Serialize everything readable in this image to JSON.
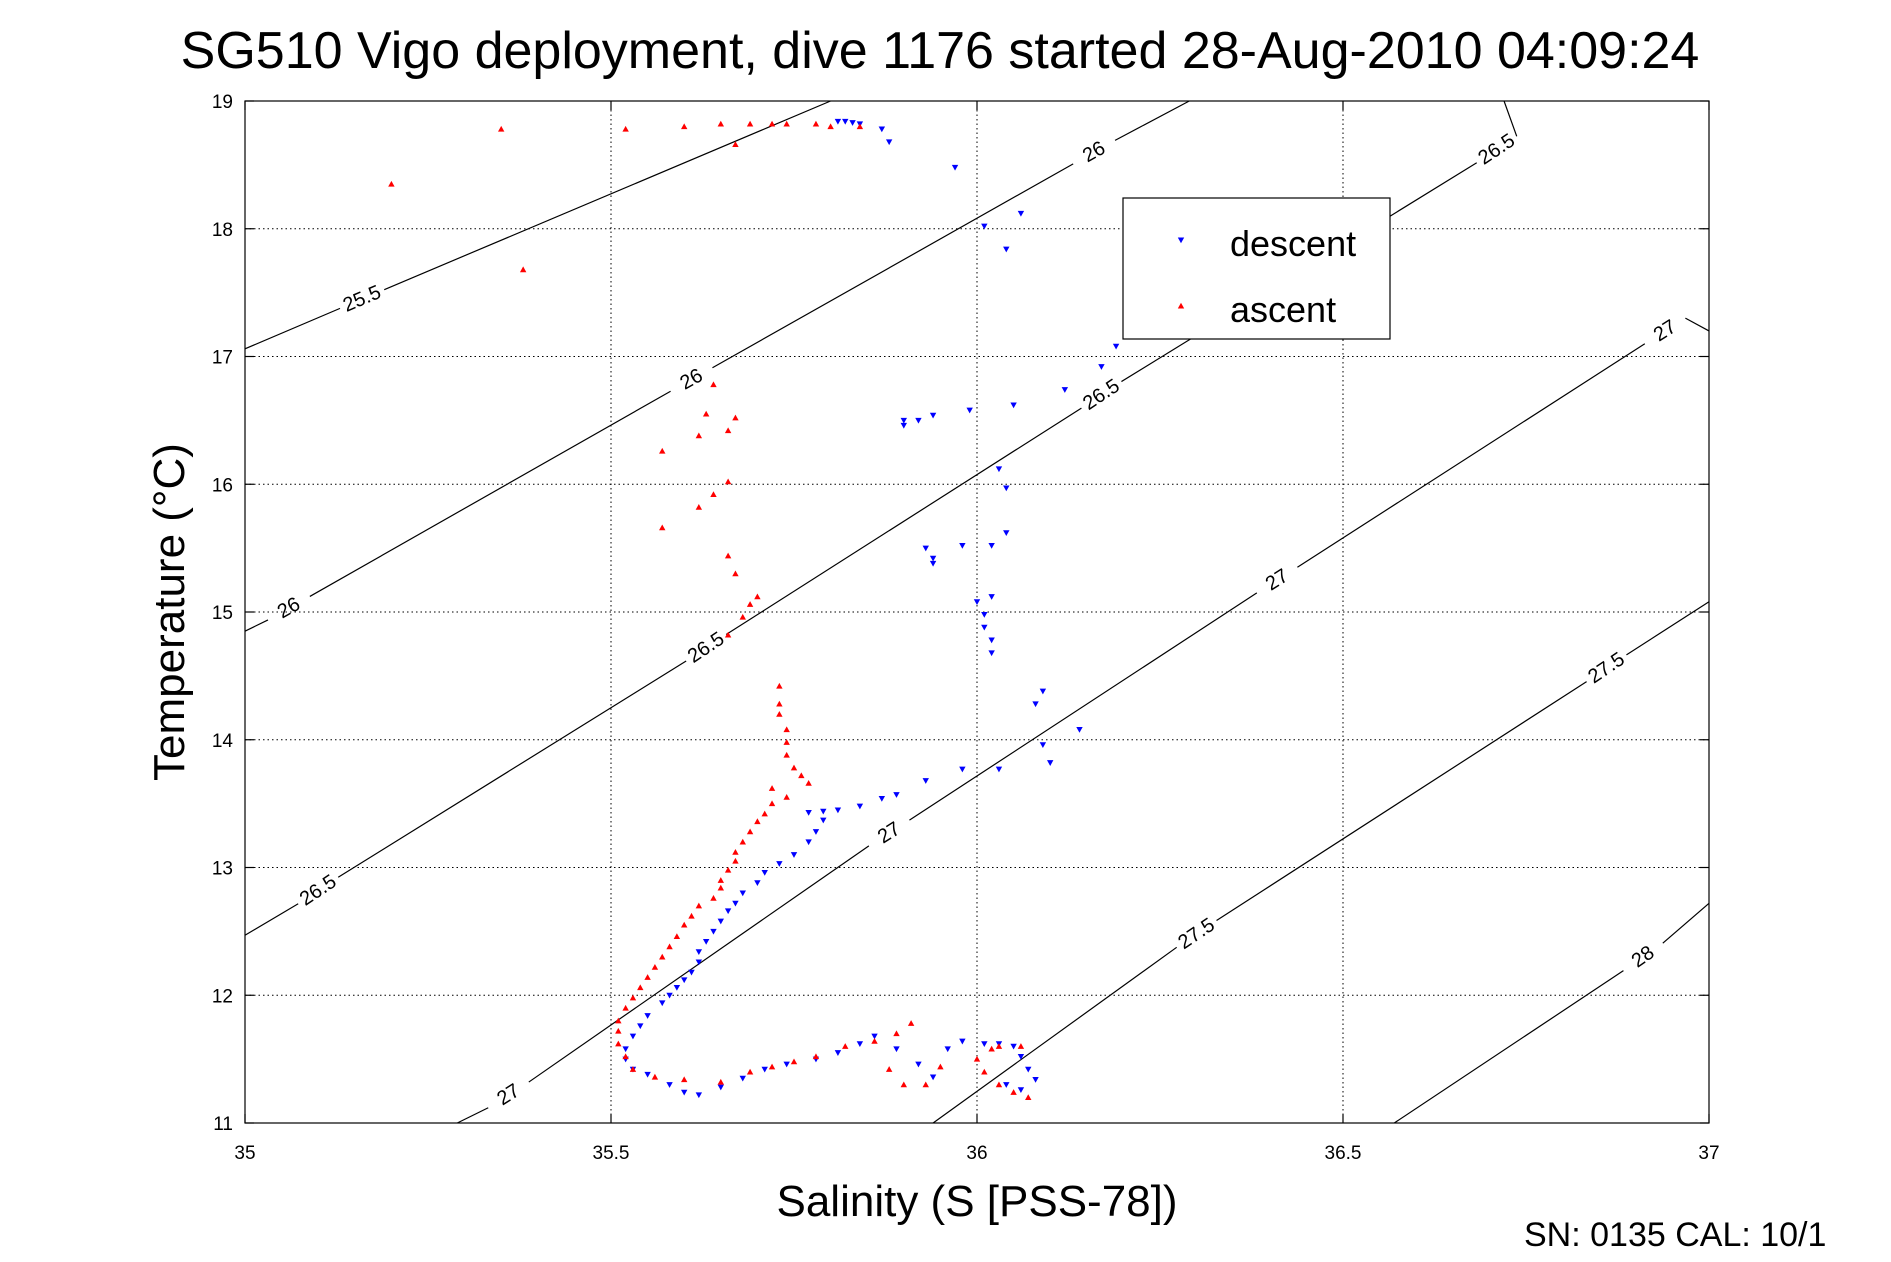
{
  "chart_data": {
    "type": "scatter",
    "title": "SG510 Vigo deployment, dive 1176 started 28-Aug-2010 04:09:24",
    "xlabel": "Salinity (S [PSS-78])",
    "ylabel": "Temperature (°C)",
    "xlim": [
      35,
      37
    ],
    "ylim": [
      11,
      19
    ],
    "x_ticks": [
      "35",
      "35.5",
      "36",
      "36.5",
      "37"
    ],
    "y_ticks": [
      "11",
      "12",
      "13",
      "14",
      "15",
      "16",
      "17",
      "18",
      "19"
    ],
    "grid": true,
    "legend_position": "top-right",
    "footer": "SN: 0135  CAL: 10/1",
    "colors": {
      "descent": "#0000ff",
      "ascent": "#ff0000",
      "contour": "#000000"
    },
    "contours": [
      {
        "level": "25.5",
        "points": [
          [
            35.0,
            17.06
          ],
          [
            35.8,
            19.0
          ]
        ],
        "labels": [
          [
            35.16,
            17.45
          ]
        ]
      },
      {
        "level": "26",
        "points": [
          [
            35.0,
            14.85
          ],
          [
            36.29,
            19.0
          ]
        ],
        "labels": [
          [
            35.06,
            15.03
          ],
          [
            35.61,
            16.82
          ],
          [
            36.16,
            18.6
          ]
        ]
      },
      {
        "level": "26.5",
        "points": [
          [
            35.0,
            12.47
          ],
          [
            36.72,
            19.0
          ]
        ],
        "labels": [
          [
            35.1,
            12.82
          ],
          [
            35.63,
            14.72
          ],
          [
            36.17,
            16.7
          ],
          [
            36.71,
            18.62
          ]
        ]
      },
      {
        "level": "27",
        "points": [
          [
            35.29,
            11.0
          ],
          [
            37.0,
            17.2
          ]
        ],
        "labels": [
          [
            35.36,
            11.22
          ],
          [
            35.88,
            13.27
          ],
          [
            36.41,
            15.25
          ],
          [
            36.94,
            17.2
          ]
        ]
      },
      {
        "level": "27.5",
        "points": [
          [
            35.94,
            11.0
          ],
          [
            37.0,
            15.08
          ]
        ],
        "labels": [
          [
            36.3,
            12.48
          ],
          [
            36.86,
            14.56
          ]
        ]
      },
      {
        "level": "28",
        "points": [
          [
            36.57,
            11.0
          ],
          [
            37.0,
            12.72
          ]
        ],
        "labels": [
          [
            36.91,
            12.3
          ]
        ]
      }
    ],
    "series": [
      {
        "name": "descent",
        "marker": "triangle-down",
        "points": [
          [
            35.81,
            18.84
          ],
          [
            35.82,
            18.84
          ],
          [
            35.83,
            18.83
          ],
          [
            35.84,
            18.82
          ],
          [
            35.87,
            18.78
          ],
          [
            35.88,
            18.68
          ],
          [
            35.97,
            18.48
          ],
          [
            36.01,
            18.02
          ],
          [
            36.06,
            18.12
          ],
          [
            36.04,
            17.84
          ],
          [
            36.19,
            17.08
          ],
          [
            36.17,
            16.92
          ],
          [
            36.12,
            16.74
          ],
          [
            36.05,
            16.62
          ],
          [
            35.99,
            16.58
          ],
          [
            35.94,
            16.54
          ],
          [
            35.92,
            16.5
          ],
          [
            35.9,
            16.5
          ],
          [
            35.9,
            16.46
          ],
          [
            36.03,
            16.12
          ],
          [
            36.04,
            15.97
          ],
          [
            36.04,
            15.62
          ],
          [
            36.02,
            15.52
          ],
          [
            35.98,
            15.52
          ],
          [
            35.93,
            15.5
          ],
          [
            35.94,
            15.42
          ],
          [
            35.94,
            15.38
          ],
          [
            36.02,
            15.12
          ],
          [
            36.0,
            15.08
          ],
          [
            36.01,
            14.98
          ],
          [
            36.01,
            14.88
          ],
          [
            36.02,
            14.78
          ],
          [
            36.02,
            14.68
          ],
          [
            36.09,
            14.38
          ],
          [
            36.08,
            14.28
          ],
          [
            36.14,
            14.08
          ],
          [
            36.09,
            13.96
          ],
          [
            36.1,
            13.82
          ],
          [
            36.03,
            13.77
          ],
          [
            35.98,
            13.77
          ],
          [
            35.93,
            13.68
          ],
          [
            35.89,
            13.57
          ],
          [
            35.87,
            13.54
          ],
          [
            35.84,
            13.48
          ],
          [
            35.81,
            13.45
          ],
          [
            35.79,
            13.44
          ],
          [
            35.77,
            13.43
          ],
          [
            35.79,
            13.37
          ],
          [
            35.78,
            13.28
          ],
          [
            35.77,
            13.2
          ],
          [
            35.75,
            13.1
          ],
          [
            35.73,
            13.03
          ],
          [
            35.71,
            12.96
          ],
          [
            35.7,
            12.88
          ],
          [
            35.68,
            12.8
          ],
          [
            35.67,
            12.72
          ],
          [
            35.66,
            12.66
          ],
          [
            35.65,
            12.58
          ],
          [
            35.64,
            12.5
          ],
          [
            35.63,
            12.42
          ],
          [
            35.62,
            12.34
          ],
          [
            35.62,
            12.26
          ],
          [
            35.61,
            12.18
          ],
          [
            35.6,
            12.12
          ],
          [
            35.59,
            12.06
          ],
          [
            35.58,
            12.0
          ],
          [
            35.57,
            11.94
          ],
          [
            35.55,
            11.84
          ],
          [
            35.54,
            11.76
          ],
          [
            35.53,
            11.68
          ],
          [
            35.52,
            11.58
          ],
          [
            35.52,
            11.5
          ],
          [
            35.53,
            11.42
          ],
          [
            35.55,
            11.38
          ],
          [
            35.58,
            11.3
          ],
          [
            35.6,
            11.24
          ],
          [
            35.62,
            11.22
          ],
          [
            35.65,
            11.28
          ],
          [
            35.68,
            11.35
          ],
          [
            35.71,
            11.42
          ],
          [
            35.74,
            11.46
          ],
          [
            35.78,
            11.5
          ],
          [
            35.81,
            11.55
          ],
          [
            35.84,
            11.62
          ],
          [
            35.86,
            11.68
          ],
          [
            35.89,
            11.58
          ],
          [
            35.92,
            11.46
          ],
          [
            35.94,
            11.36
          ],
          [
            35.96,
            11.58
          ],
          [
            35.98,
            11.64
          ],
          [
            36.01,
            11.62
          ],
          [
            36.03,
            11.62
          ],
          [
            36.05,
            11.6
          ],
          [
            36.06,
            11.52
          ],
          [
            36.07,
            11.42
          ],
          [
            36.08,
            11.34
          ],
          [
            36.06,
            11.26
          ],
          [
            36.04,
            11.3
          ]
        ]
      },
      {
        "name": "ascent",
        "marker": "triangle-up",
        "points": [
          [
            35.2,
            18.35
          ],
          [
            35.35,
            18.78
          ],
          [
            35.38,
            17.68
          ],
          [
            35.52,
            18.78
          ],
          [
            35.6,
            18.8
          ],
          [
            35.65,
            18.82
          ],
          [
            35.67,
            18.66
          ],
          [
            35.69,
            18.82
          ],
          [
            35.72,
            18.82
          ],
          [
            35.74,
            18.82
          ],
          [
            35.78,
            18.82
          ],
          [
            35.8,
            18.8
          ],
          [
            35.84,
            18.8
          ],
          [
            35.64,
            16.78
          ],
          [
            35.63,
            16.55
          ],
          [
            35.67,
            16.52
          ],
          [
            35.66,
            16.42
          ],
          [
            35.62,
            16.38
          ],
          [
            35.57,
            16.26
          ],
          [
            35.66,
            16.02
          ],
          [
            35.64,
            15.92
          ],
          [
            35.62,
            15.82
          ],
          [
            35.57,
            15.66
          ],
          [
            35.66,
            15.44
          ],
          [
            35.67,
            15.3
          ],
          [
            35.7,
            15.12
          ],
          [
            35.69,
            15.06
          ],
          [
            35.68,
            14.96
          ],
          [
            35.66,
            14.82
          ],
          [
            35.73,
            14.42
          ],
          [
            35.73,
            14.28
          ],
          [
            35.73,
            14.2
          ],
          [
            35.74,
            14.08
          ],
          [
            35.74,
            13.98
          ],
          [
            35.74,
            13.88
          ],
          [
            35.75,
            13.78
          ],
          [
            35.76,
            13.72
          ],
          [
            35.77,
            13.66
          ],
          [
            35.72,
            13.62
          ],
          [
            35.74,
            13.55
          ],
          [
            35.72,
            13.5
          ],
          [
            35.71,
            13.42
          ],
          [
            35.7,
            13.36
          ],
          [
            35.69,
            13.28
          ],
          [
            35.68,
            13.2
          ],
          [
            35.67,
            13.12
          ],
          [
            35.67,
            13.05
          ],
          [
            35.66,
            12.98
          ],
          [
            35.65,
            12.9
          ],
          [
            35.65,
            12.84
          ],
          [
            35.64,
            12.76
          ],
          [
            35.62,
            12.7
          ],
          [
            35.61,
            12.62
          ],
          [
            35.6,
            12.55
          ],
          [
            35.59,
            12.46
          ],
          [
            35.58,
            12.38
          ],
          [
            35.57,
            12.3
          ],
          [
            35.56,
            12.22
          ],
          [
            35.55,
            12.14
          ],
          [
            35.54,
            12.06
          ],
          [
            35.53,
            11.98
          ],
          [
            35.52,
            11.9
          ],
          [
            35.51,
            11.8
          ],
          [
            35.51,
            11.72
          ],
          [
            35.51,
            11.62
          ],
          [
            35.52,
            11.52
          ],
          [
            35.53,
            11.42
          ],
          [
            35.56,
            11.36
          ],
          [
            35.6,
            11.34
          ],
          [
            35.65,
            11.32
          ],
          [
            35.69,
            11.4
          ],
          [
            35.72,
            11.44
          ],
          [
            35.75,
            11.48
          ],
          [
            35.78,
            11.52
          ],
          [
            35.82,
            11.6
          ],
          [
            35.86,
            11.64
          ],
          [
            35.89,
            11.7
          ],
          [
            35.91,
            11.78
          ],
          [
            35.88,
            11.42
          ],
          [
            35.9,
            11.3
          ],
          [
            35.93,
            11.3
          ],
          [
            35.95,
            11.44
          ],
          [
            36.0,
            11.5
          ],
          [
            36.02,
            11.58
          ],
          [
            36.03,
            11.6
          ],
          [
            36.01,
            11.4
          ],
          [
            36.03,
            11.3
          ],
          [
            36.05,
            11.24
          ],
          [
            36.07,
            11.2
          ],
          [
            36.06,
            11.6
          ]
        ]
      }
    ]
  }
}
